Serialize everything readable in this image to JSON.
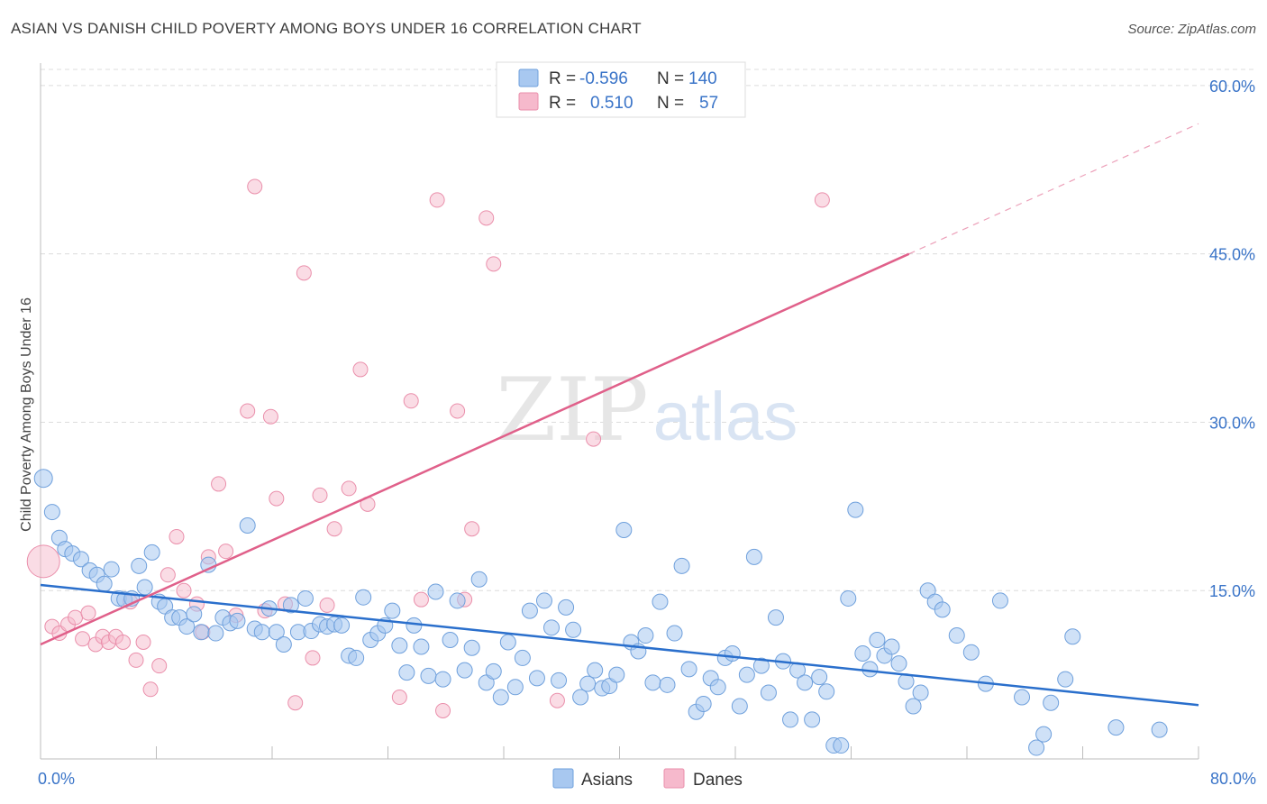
{
  "title": "ASIAN VS DANISH CHILD POVERTY AMONG BOYS UNDER 16 CORRELATION CHART",
  "source": "Source: ZipAtlas.com",
  "watermark": {
    "zip": "ZIP",
    "atlas": "atlas"
  },
  "colors": {
    "asians_fill": "#a8c8f0",
    "asians_stroke": "#6fa0dc",
    "asians_line": "#2a6fcc",
    "danes_fill": "#f6b9cc",
    "danes_stroke": "#ea8fab",
    "danes_line": "#e0608a",
    "tick_label": "#3a74c8",
    "grid": "#dcdcdc"
  },
  "legend_top": {
    "rows": [
      {
        "r_label": "R =",
        "r_value": "-0.596",
        "n_label": "N =",
        "n_value": "140"
      },
      {
        "r_label": "R =",
        "r_value": "0.510",
        "n_label": "N =",
        "n_value": "57"
      }
    ]
  },
  "legend_bottom": [
    "Asians",
    "Danes"
  ],
  "chart_data": {
    "type": "scatter",
    "title": "ASIAN VS DANISH CHILD POVERTY AMONG BOYS UNDER 16 CORRELATION CHART",
    "xlabel": "",
    "ylabel": "Child Poverty Among Boys Under 16",
    "xlim": [
      0,
      80
    ],
    "ylim": [
      0,
      62
    ],
    "x_tick_labels": [
      "0.0%",
      "80.0%"
    ],
    "y_ticks": [
      15,
      30,
      45,
      60
    ],
    "y_tick_labels": [
      "15.0%",
      "30.0%",
      "45.0%",
      "60.0%"
    ],
    "grid": "horizontal dashed",
    "legend_placement": "top-center",
    "series": [
      {
        "name": "Asians",
        "r": -0.596,
        "n": 140,
        "trend": {
          "x": [
            0,
            80
          ],
          "y": [
            15.5,
            4.8
          ]
        },
        "points": [
          [
            0.2,
            25
          ],
          [
            0.8,
            22
          ],
          [
            1.3,
            19.7
          ],
          [
            1.7,
            18.7
          ],
          [
            2.2,
            18.3
          ],
          [
            2.8,
            17.8
          ],
          [
            3.4,
            16.8
          ],
          [
            3.9,
            16.4
          ],
          [
            4.4,
            15.6
          ],
          [
            4.9,
            16.9
          ],
          [
            5.4,
            14.3
          ],
          [
            5.8,
            14.2
          ],
          [
            6.3,
            14.3
          ],
          [
            6.8,
            17.2
          ],
          [
            7.2,
            15.3
          ],
          [
            7.7,
            18.4
          ],
          [
            8.2,
            14.0
          ],
          [
            8.6,
            13.6
          ],
          [
            9.1,
            12.6
          ],
          [
            9.6,
            12.6
          ],
          [
            10.1,
            11.8
          ],
          [
            10.6,
            12.9
          ],
          [
            11.1,
            11.3
          ],
          [
            11.6,
            17.3
          ],
          [
            12.1,
            11.2
          ],
          [
            12.6,
            12.6
          ],
          [
            13.1,
            12.1
          ],
          [
            13.6,
            12.3
          ],
          [
            14.3,
            20.8
          ],
          [
            14.8,
            11.6
          ],
          [
            15.3,
            11.3
          ],
          [
            15.8,
            13.4
          ],
          [
            16.3,
            11.3
          ],
          [
            16.8,
            10.2
          ],
          [
            17.3,
            13.7
          ],
          [
            17.8,
            11.3
          ],
          [
            18.3,
            14.3
          ],
          [
            18.7,
            11.4
          ],
          [
            19.3,
            12.0
          ],
          [
            19.8,
            11.8
          ],
          [
            20.3,
            12.0
          ],
          [
            20.8,
            11.9
          ],
          [
            21.3,
            9.2
          ],
          [
            21.8,
            9.0
          ],
          [
            22.3,
            14.4
          ],
          [
            22.8,
            10.6
          ],
          [
            23.3,
            11.2
          ],
          [
            23.8,
            11.9
          ],
          [
            24.3,
            13.2
          ],
          [
            24.8,
            10.1
          ],
          [
            25.3,
            7.7
          ],
          [
            25.8,
            11.9
          ],
          [
            26.3,
            10.0
          ],
          [
            26.8,
            7.4
          ],
          [
            27.3,
            14.9
          ],
          [
            27.8,
            7.1
          ],
          [
            28.3,
            10.6
          ],
          [
            28.8,
            14.1
          ],
          [
            29.3,
            7.9
          ],
          [
            29.8,
            9.9
          ],
          [
            30.3,
            16.0
          ],
          [
            30.8,
            6.8
          ],
          [
            31.3,
            7.8
          ],
          [
            31.8,
            5.5
          ],
          [
            32.3,
            10.4
          ],
          [
            32.8,
            6.4
          ],
          [
            33.3,
            9.0
          ],
          [
            33.8,
            13.2
          ],
          [
            34.3,
            7.2
          ],
          [
            34.8,
            14.1
          ],
          [
            35.3,
            11.7
          ],
          [
            35.8,
            7.0
          ],
          [
            36.3,
            13.5
          ],
          [
            36.8,
            11.5
          ],
          [
            37.3,
            5.5
          ],
          [
            37.8,
            6.7
          ],
          [
            38.3,
            7.9
          ],
          [
            38.8,
            6.3
          ],
          [
            39.3,
            6.5
          ],
          [
            39.8,
            7.5
          ],
          [
            40.3,
            20.4
          ],
          [
            40.8,
            10.4
          ],
          [
            41.3,
            9.6
          ],
          [
            41.8,
            11.0
          ],
          [
            42.3,
            6.8
          ],
          [
            42.8,
            14.0
          ],
          [
            43.3,
            6.6
          ],
          [
            43.8,
            11.2
          ],
          [
            44.3,
            17.2
          ],
          [
            44.8,
            8.0
          ],
          [
            45.3,
            4.2
          ],
          [
            45.8,
            4.9
          ],
          [
            46.3,
            7.2
          ],
          [
            46.8,
            6.4
          ],
          [
            47.3,
            9.0
          ],
          [
            47.8,
            9.4
          ],
          [
            48.3,
            4.7
          ],
          [
            48.8,
            7.5
          ],
          [
            49.3,
            18.0
          ],
          [
            49.8,
            8.3
          ],
          [
            50.3,
            5.9
          ],
          [
            50.8,
            12.6
          ],
          [
            51.3,
            8.7
          ],
          [
            51.8,
            3.5
          ],
          [
            52.3,
            7.9
          ],
          [
            52.8,
            6.8
          ],
          [
            53.3,
            3.5
          ],
          [
            53.8,
            7.3
          ],
          [
            54.3,
            6.0
          ],
          [
            54.8,
            1.2
          ],
          [
            55.3,
            1.2
          ],
          [
            55.8,
            14.3
          ],
          [
            56.3,
            22.2
          ],
          [
            56.8,
            9.4
          ],
          [
            57.3,
            8.0
          ],
          [
            57.8,
            10.6
          ],
          [
            58.3,
            9.2
          ],
          [
            58.8,
            10.0
          ],
          [
            59.3,
            8.5
          ],
          [
            59.8,
            6.9
          ],
          [
            60.3,
            4.7
          ],
          [
            60.8,
            5.9
          ],
          [
            61.3,
            15.0
          ],
          [
            61.8,
            14.0
          ],
          [
            62.3,
            13.3
          ],
          [
            63.3,
            11.0
          ],
          [
            64.3,
            9.5
          ],
          [
            65.3,
            6.7
          ],
          [
            66.3,
            14.1
          ],
          [
            67.8,
            5.5
          ],
          [
            68.8,
            1.0
          ],
          [
            69.3,
            2.2
          ],
          [
            69.8,
            5.0
          ],
          [
            70.8,
            7.1
          ],
          [
            71.3,
            10.9
          ],
          [
            74.3,
            2.8
          ],
          [
            77.3,
            2.6
          ]
        ]
      },
      {
        "name": "Danes",
        "r": 0.51,
        "n": 57,
        "trend": {
          "x": [
            0,
            60
          ],
          "y": [
            10.2,
            45.0
          ]
        },
        "trend_extension": {
          "x": [
            60,
            80
          ],
          "y": [
            45.0,
            56.6
          ]
        },
        "points": [
          [
            0.2,
            17.6,
            "large"
          ],
          [
            0.8,
            11.8
          ],
          [
            1.3,
            11.2
          ],
          [
            1.9,
            12.0
          ],
          [
            2.4,
            12.6
          ],
          [
            2.9,
            10.7
          ],
          [
            3.3,
            13.0
          ],
          [
            3.8,
            10.2
          ],
          [
            4.3,
            10.9
          ],
          [
            4.7,
            10.4
          ],
          [
            5.2,
            10.9
          ],
          [
            5.7,
            10.4
          ],
          [
            6.2,
            14.0
          ],
          [
            6.6,
            8.8
          ],
          [
            7.1,
            10.4
          ],
          [
            7.6,
            6.2
          ],
          [
            8.2,
            8.3
          ],
          [
            8.8,
            16.4
          ],
          [
            9.4,
            19.8
          ],
          [
            9.9,
            15.0
          ],
          [
            10.8,
            13.8
          ],
          [
            11.2,
            11.3
          ],
          [
            11.6,
            18.0
          ],
          [
            12.3,
            24.5
          ],
          [
            12.8,
            18.5
          ],
          [
            13.5,
            12.8
          ],
          [
            14.3,
            31.0
          ],
          [
            14.8,
            51.0
          ],
          [
            15.5,
            13.2
          ],
          [
            15.9,
            30.5
          ],
          [
            16.3,
            23.2
          ],
          [
            16.9,
            13.8
          ],
          [
            17.6,
            5.0
          ],
          [
            18.2,
            43.3
          ],
          [
            18.8,
            9.0
          ],
          [
            19.3,
            23.5
          ],
          [
            19.8,
            13.7
          ],
          [
            20.3,
            20.5
          ],
          [
            21.3,
            24.1
          ],
          [
            22.1,
            34.7
          ],
          [
            22.6,
            22.7
          ],
          [
            24.8,
            5.5
          ],
          [
            25.6,
            31.9
          ],
          [
            26.3,
            14.2
          ],
          [
            27.4,
            49.8
          ],
          [
            27.8,
            4.3
          ],
          [
            28.8,
            31.0
          ],
          [
            29.3,
            14.2
          ],
          [
            29.8,
            20.5
          ],
          [
            30.8,
            48.2
          ],
          [
            31.3,
            44.1
          ],
          [
            35.7,
            5.2
          ],
          [
            38.2,
            28.5
          ],
          [
            54.0,
            49.8
          ]
        ]
      }
    ]
  }
}
